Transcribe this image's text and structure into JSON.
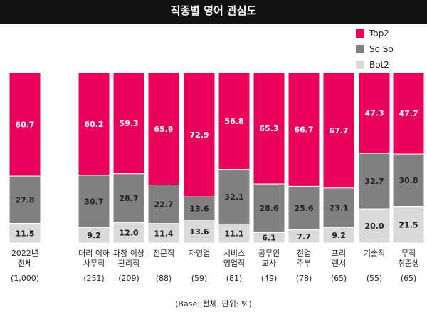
{
  "chart_data": {
    "type": "bar",
    "stacked": true,
    "normalized": true,
    "title": "직종별 영어 관심도",
    "categories": [
      {
        "label_lines": [
          "2022년",
          "전체"
        ],
        "count": "(1,000)"
      },
      {
        "label_lines": [
          "대리 이하",
          "사무직"
        ],
        "count": "(251)"
      },
      {
        "label_lines": [
          "과장 이상",
          "관리직"
        ],
        "count": "(209)"
      },
      {
        "label_lines": [
          "전문직"
        ],
        "count": "(88)"
      },
      {
        "label_lines": [
          "자영업"
        ],
        "count": "(59)"
      },
      {
        "label_lines": [
          "서비스",
          "영업직"
        ],
        "count": "(81)"
      },
      {
        "label_lines": [
          "공무원",
          "교사"
        ],
        "count": "(49)"
      },
      {
        "label_lines": [
          "전업",
          "주부"
        ],
        "count": "(78)"
      },
      {
        "label_lines": [
          "프리",
          "랜서"
        ],
        "count": "(65)"
      },
      {
        "label_lines": [
          "기술직"
        ],
        "count": "(55)"
      },
      {
        "label_lines": [
          "무직",
          "취준생"
        ],
        "count": "(65)"
      }
    ],
    "series": [
      {
        "name": "Top2",
        "color": "#e8005a",
        "values": [
          "60.7",
          "60.2",
          "59.3",
          "65.9",
          "72.9",
          "56.8",
          "65.3",
          "66.7",
          "67.7",
          "47.3",
          "47.7"
        ]
      },
      {
        "name": "So So",
        "color": "#808080",
        "values": [
          "27.8",
          "30.7",
          "28.7",
          "22.7",
          "13.6",
          "32.1",
          "28.6",
          "25.6",
          "23.1",
          "32.7",
          "30.8"
        ]
      },
      {
        "name": "Bot2",
        "color": "#d9d9d9",
        "values": [
          "11.5",
          "9.2",
          "12.0",
          "11.4",
          "13.6",
          "11.1",
          "6.1",
          "7.7",
          "9.2",
          "20.0",
          "21.5"
        ]
      }
    ],
    "legend_position": "top-right",
    "footnote": "(Base: 전체, 단위: %)"
  }
}
